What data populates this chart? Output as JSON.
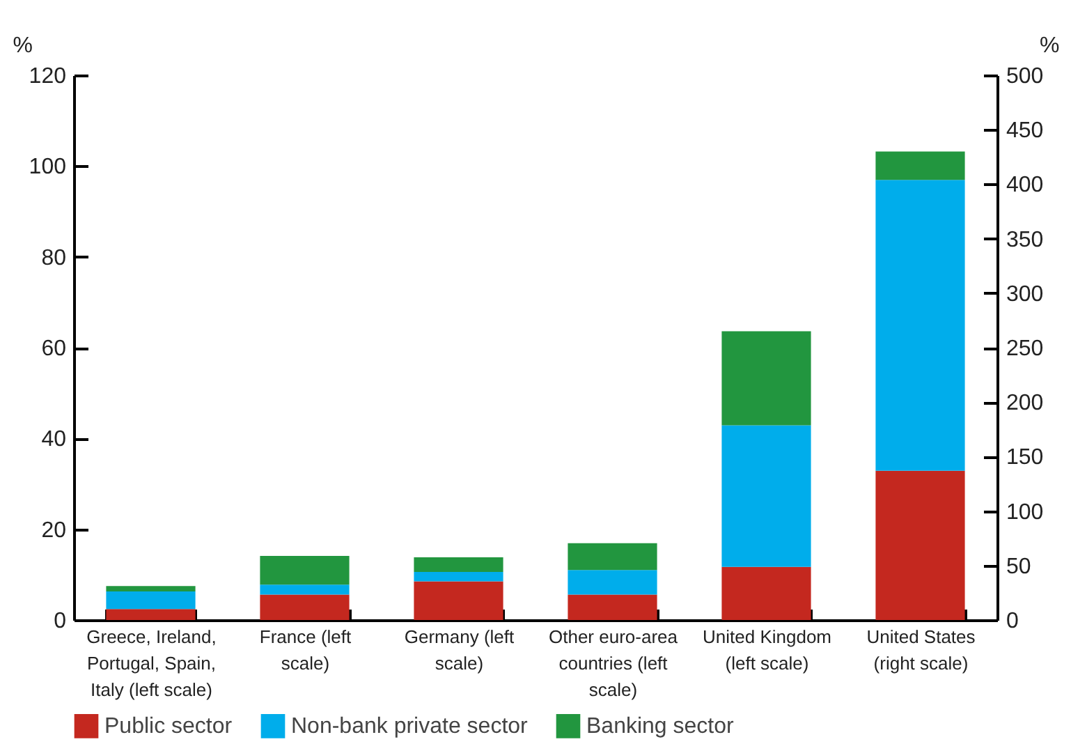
{
  "chart_data": {
    "type": "bar",
    "stacked": true,
    "categories": [
      "Greece, Ireland, Portugal, Spain, Italy (left scale)",
      "France (left scale)",
      "Germany (left scale)",
      "Other euro-area countries (left scale)",
      "United Kingdom (left scale)",
      "United States (right scale)"
    ],
    "series": [
      {
        "name": "Public sector",
        "color": "#c4281f",
        "values": [
          2.4,
          5.6,
          8.5,
          5.6,
          11.7,
          null
        ]
      },
      {
        "name": "Non-bank private sector",
        "color": "#00adeb",
        "values": [
          3.9,
          2.2,
          2.1,
          5.4,
          31.2,
          null
        ]
      },
      {
        "name": "Banking sector",
        "color": "#22963f",
        "values": [
          1.2,
          6.3,
          3.2,
          5.9,
          20.7,
          null
        ]
      },
      {
        "color": "#c4281f",
        "axis": "y2",
        "values": [
          null,
          null,
          null,
          null,
          null,
          137
        ]
      },
      {
        "color": "#00adeb",
        "axis": "y2",
        "values": [
          null,
          null,
          null,
          null,
          null,
          267
        ]
      },
      {
        "color": "#22963f",
        "axis": "y2",
        "values": [
          null,
          null,
          null,
          null,
          null,
          26
        ]
      }
    ],
    "ylabel": "%",
    "y2label": "%",
    "ylim": [
      0,
      120
    ],
    "yticks": [
      0,
      20,
      40,
      60,
      80,
      100,
      120
    ],
    "y2lim": [
      0,
      500
    ],
    "y2ticks": [
      0,
      50,
      100,
      150,
      200,
      250,
      300,
      350,
      400,
      450,
      500
    ],
    "grid": false,
    "legend": "bottom"
  }
}
